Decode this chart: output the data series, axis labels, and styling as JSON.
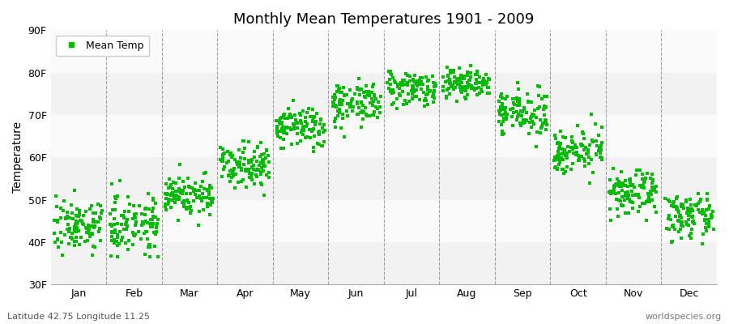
{
  "title": "Monthly Mean Temperatures 1901 - 2009",
  "ylabel": "Temperature",
  "footer_left": "Latitude 42.75 Longitude 11.25",
  "footer_right": "worldspecies.org",
  "legend_label": "Mean Temp",
  "ylim": [
    30,
    90
  ],
  "yticks": [
    30,
    40,
    50,
    60,
    70,
    80,
    90
  ],
  "ytick_labels": [
    "30F",
    "40F",
    "50F",
    "60F",
    "70F",
    "80F",
    "90F"
  ],
  "months": [
    "Jan",
    "Feb",
    "Mar",
    "Apr",
    "May",
    "Jun",
    "Jul",
    "Aug",
    "Sep",
    "Oct",
    "Nov",
    "Dec"
  ],
  "marker_color": "#00bb00",
  "marker_size": 6,
  "bg_color": "#ffffff",
  "plot_bg_color": "#ffffff",
  "band_colors": [
    "#f2f2f2",
    "#fafafa"
  ],
  "month_means": [
    44.0,
    44.5,
    51.0,
    58.5,
    67.0,
    73.0,
    76.5,
    77.5,
    70.5,
    61.5,
    51.5,
    46.0
  ],
  "month_stds": [
    3.0,
    3.5,
    2.5,
    2.5,
    2.5,
    2.5,
    2.0,
    1.8,
    2.5,
    2.5,
    2.5,
    2.5
  ]
}
